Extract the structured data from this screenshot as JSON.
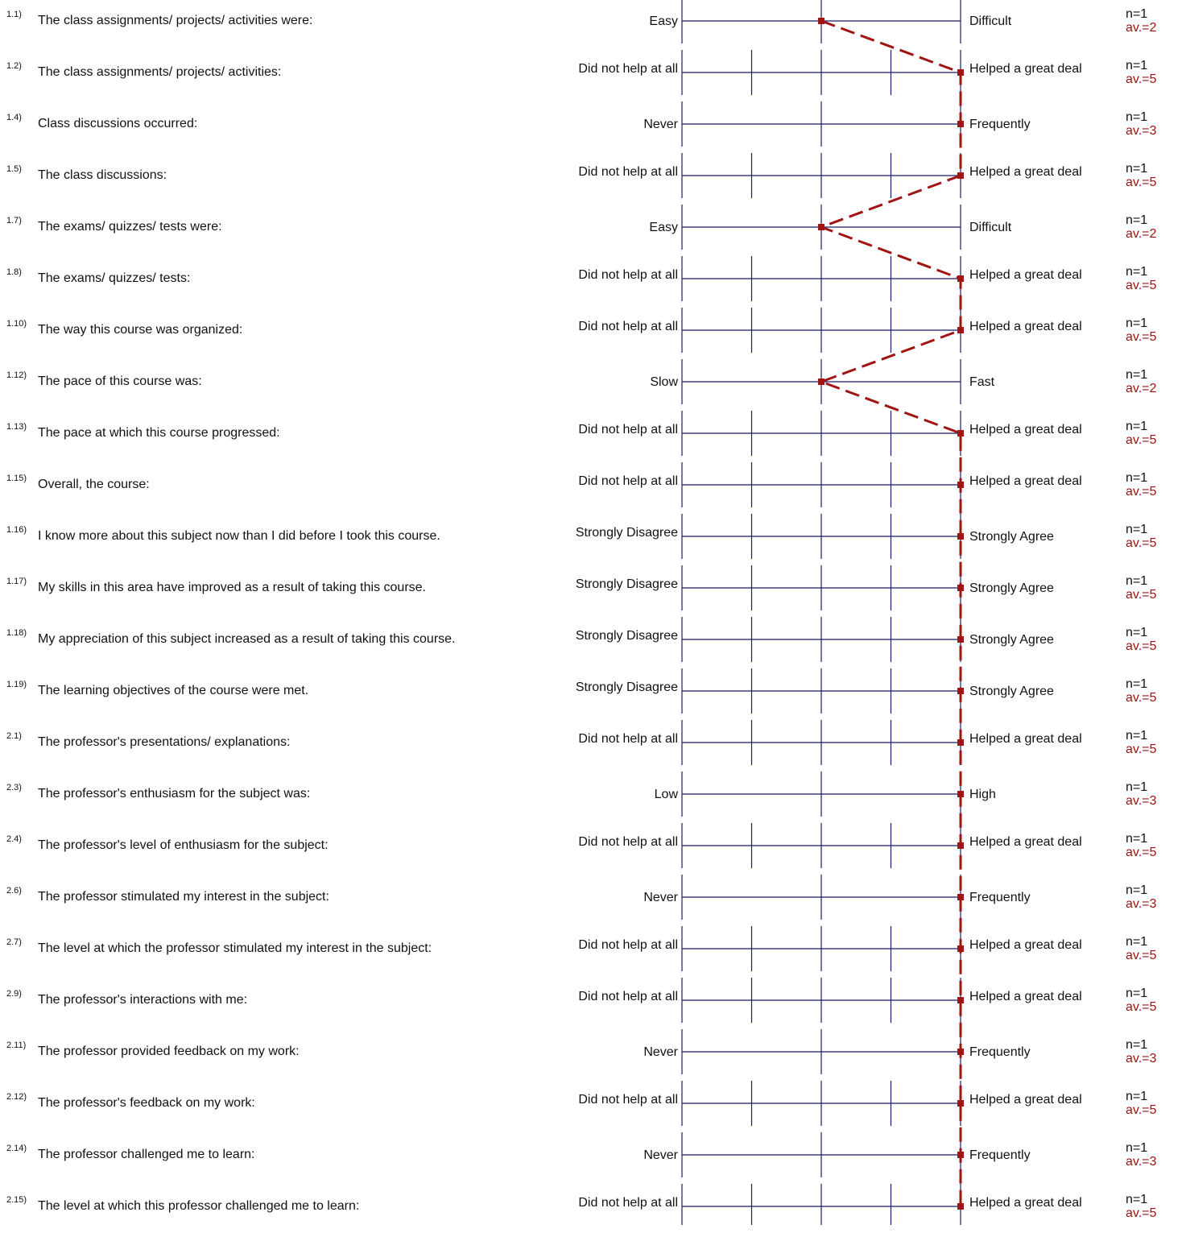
{
  "chart_data": {
    "type": "line",
    "scale": {
      "min": 1,
      "max": 5
    },
    "profile_color": "#a01414",
    "axis_color": "#1a1a6e",
    "items": [
      {
        "num": "1.1)",
        "question": "The class assignments/ projects/ activities were:",
        "left": "Easy",
        "right": "Difficult",
        "steps": 3,
        "n": "n=1",
        "av_label": "av.=2",
        "value": 3
      },
      {
        "num": "1.2)",
        "question": "The class assignments/ projects/ activities:",
        "left": "Did not help at all",
        "right": "Helped a great deal",
        "steps": 5,
        "n": "n=1",
        "av_label": "av.=5",
        "value": 5
      },
      {
        "num": "1.4)",
        "question": "Class discussions occurred:",
        "left": "Never",
        "right": "Frequently",
        "steps": 3,
        "n": "n=1",
        "av_label": "av.=3",
        "value": 5
      },
      {
        "num": "1.5)",
        "question": "The class discussions:",
        "left": "Did not help at all",
        "right": "Helped a great deal",
        "steps": 5,
        "n": "n=1",
        "av_label": "av.=5",
        "value": 5
      },
      {
        "num": "1.7)",
        "question": "The exams/ quizzes/ tests were:",
        "left": "Easy",
        "right": "Difficult",
        "steps": 3,
        "n": "n=1",
        "av_label": "av.=2",
        "value": 3
      },
      {
        "num": "1.8)",
        "question": "The exams/ quizzes/ tests:",
        "left": "Did not help at all",
        "right": "Helped a great deal",
        "steps": 5,
        "n": "n=1",
        "av_label": "av.=5",
        "value": 5
      },
      {
        "num": "1.10)",
        "question": "The way this course was organized:",
        "left": "Did not help at all",
        "right": "Helped a great deal",
        "steps": 5,
        "n": "n=1",
        "av_label": "av.=5",
        "value": 5
      },
      {
        "num": "1.12)",
        "question": "The pace of this course was:",
        "left": "Slow",
        "right": "Fast",
        "steps": 3,
        "n": "n=1",
        "av_label": "av.=2",
        "value": 3
      },
      {
        "num": "1.13)",
        "question": "The pace at which this course progressed:",
        "left": "Did not help at all",
        "right": "Helped a great deal",
        "steps": 5,
        "n": "n=1",
        "av_label": "av.=5",
        "value": 5
      },
      {
        "num": "1.15)",
        "question": "Overall, the course:",
        "left": "Did not help at all",
        "right": "Helped a great deal",
        "steps": 5,
        "n": "n=1",
        "av_label": "av.=5",
        "value": 5
      },
      {
        "num": "1.16)",
        "question": "I know more about this subject now than I did before I took this course.",
        "left": "Strongly Disagree",
        "right": "Strongly Agree",
        "steps": 5,
        "n": "n=1",
        "av_label": "av.=5",
        "value": 5
      },
      {
        "num": "1.17)",
        "question": "My skills in this area have improved as a result of taking this course.",
        "left": "Strongly Disagree",
        "right": "Strongly Agree",
        "steps": 5,
        "n": "n=1",
        "av_label": "av.=5",
        "value": 5
      },
      {
        "num": "1.18)",
        "question": "My appreciation of this subject increased as a result of taking this course.",
        "left": "Strongly Disagree",
        "right": "Strongly Agree",
        "steps": 5,
        "n": "n=1",
        "av_label": "av.=5",
        "value": 5
      },
      {
        "num": "1.19)",
        "question": "The learning objectives of the course were met.",
        "left": "Strongly Disagree",
        "right": "Strongly Agree",
        "steps": 5,
        "n": "n=1",
        "av_label": "av.=5",
        "value": 5
      },
      {
        "num": "2.1)",
        "question": "The professor's presentations/ explanations:",
        "left": "Did not help at all",
        "right": "Helped a great deal",
        "steps": 5,
        "n": "n=1",
        "av_label": "av.=5",
        "value": 5
      },
      {
        "num": "2.3)",
        "question": "The professor's enthusiasm for the subject was:",
        "left": "Low",
        "right": "High",
        "steps": 3,
        "n": "n=1",
        "av_label": "av.=3",
        "value": 5
      },
      {
        "num": "2.4)",
        "question": "The professor's level of enthusiasm for the subject:",
        "left": "Did not help at all",
        "right": "Helped a great deal",
        "steps": 5,
        "n": "n=1",
        "av_label": "av.=5",
        "value": 5
      },
      {
        "num": "2.6)",
        "question": "The professor stimulated my interest in the subject:",
        "left": "Never",
        "right": "Frequently",
        "steps": 3,
        "n": "n=1",
        "av_label": "av.=3",
        "value": 5
      },
      {
        "num": "2.7)",
        "question": "The level at which the professor stimulated my interest in the subject:",
        "left": "Did not help at all",
        "right": "Helped a great deal",
        "steps": 5,
        "n": "n=1",
        "av_label": "av.=5",
        "value": 5
      },
      {
        "num": "2.9)",
        "question": "The professor's interactions with me:",
        "left": "Did not help at all",
        "right": "Helped a great deal",
        "steps": 5,
        "n": "n=1",
        "av_label": "av.=5",
        "value": 5
      },
      {
        "num": "2.11)",
        "question": "The professor provided feedback on my work:",
        "left": "Never",
        "right": "Frequently",
        "steps": 3,
        "n": "n=1",
        "av_label": "av.=3",
        "value": 5
      },
      {
        "num": "2.12)",
        "question": "The professor's feedback on my work:",
        "left": "Did not help at all",
        "right": "Helped a great deal",
        "steps": 5,
        "n": "n=1",
        "av_label": "av.=5",
        "value": 5
      },
      {
        "num": "2.14)",
        "question": "The professor challenged me to learn:",
        "left": "Never",
        "right": "Frequently",
        "steps": 3,
        "n": "n=1",
        "av_label": "av.=3",
        "value": 5
      },
      {
        "num": "2.15)",
        "question": "The level at which this professor challenged me to learn:",
        "left": "Did not help at all",
        "right": "Helped a great deal",
        "steps": 5,
        "n": "n=1",
        "av_label": "av.=5",
        "value": 5
      }
    ]
  }
}
